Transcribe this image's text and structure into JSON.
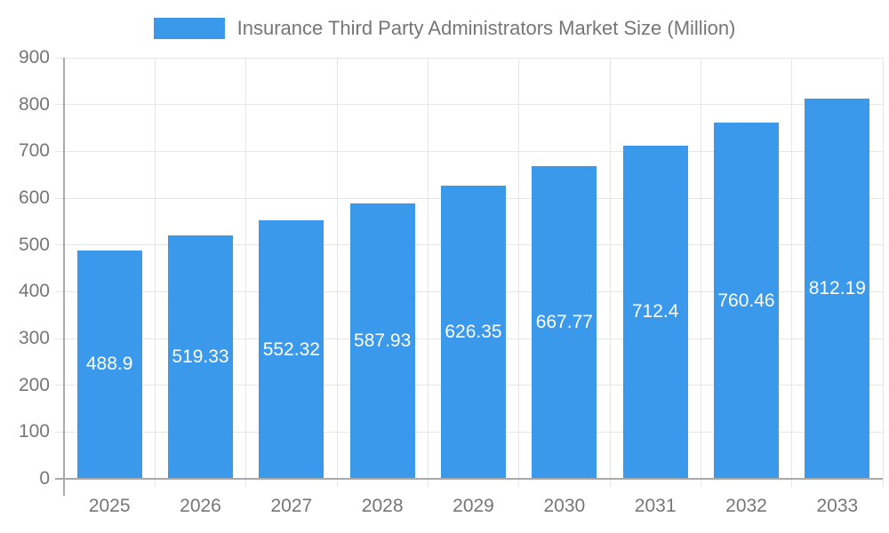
{
  "chart_data": {
    "type": "bar",
    "title": "Insurance Third Party Administrators Market Size (Million)",
    "categories": [
      "2025",
      "2026",
      "2027",
      "2028",
      "2029",
      "2030",
      "2031",
      "2032",
      "2033"
    ],
    "values": [
      488.9,
      519.33,
      552.32,
      587.93,
      626.35,
      667.77,
      712.4,
      760.46,
      812.19
    ],
    "value_labels": [
      "488.9",
      "519.33",
      "552.32",
      "587.93",
      "626.35",
      "667.77",
      "712.4",
      "760.46",
      "812.19"
    ],
    "xlabel": "",
    "ylabel": "",
    "ylim": [
      0,
      900
    ],
    "ytick_step": 100,
    "ytick_labels": [
      "0",
      "100",
      "200",
      "300",
      "400",
      "500",
      "600",
      "700",
      "800",
      "900"
    ],
    "grid": true,
    "legend_position": "top",
    "colors": {
      "bar": "#3b99ec",
      "bar_value_text": "#ffffff",
      "axis_text": "#767676",
      "legend_text": "#767676",
      "gridline": "#e6e6e6",
      "axis_line": "#a9a9a9",
      "background": "#ffffff"
    }
  }
}
